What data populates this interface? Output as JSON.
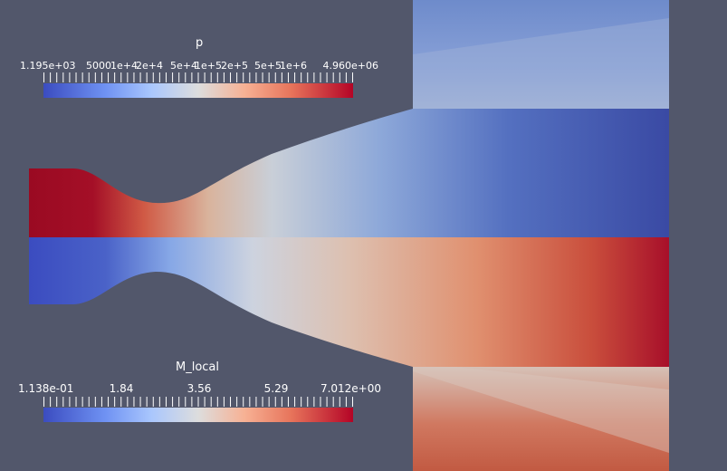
{
  "window": {
    "background": "#52576b"
  },
  "legend_p": {
    "title": "p",
    "labels": [
      "1.195e+03",
      "5000",
      "1e+4",
      "2e+4",
      "5e+4",
      "1e+5",
      "2e+5",
      "5e+5",
      "1e+6",
      "4.960e+06"
    ],
    "scale": "log"
  },
  "legend_m": {
    "title": "M_local",
    "labels": [
      "1.138e-01",
      "1.84",
      "3.56",
      "5.29",
      "7.012e+00"
    ],
    "scale": "linear"
  },
  "colormap": [
    "#3b4cc0",
    "#6f92f3",
    "#aac7fd",
    "#dddddd",
    "#f7b194",
    "#e7745b",
    "#b40426"
  ]
}
